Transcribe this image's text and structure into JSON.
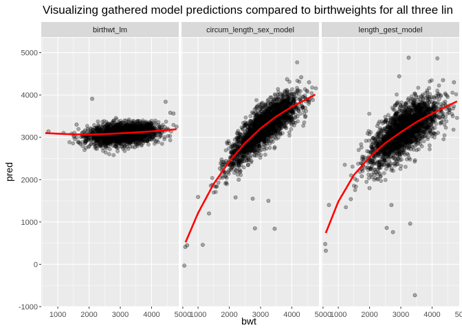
{
  "chart_data": {
    "type": "scatter",
    "title": "Visualizing gathered model predictions compared to birthweights for all three lin",
    "xlabel": "bwt",
    "ylabel": "pred",
    "xlim": [
      470,
      4870
    ],
    "ylim": [
      -1000,
      5350
    ],
    "x_ticks": [
      1000,
      2000,
      3000,
      4000,
      5000
    ],
    "y_ticks": [
      -1000,
      0,
      1000,
      2000,
      3000,
      4000,
      5000
    ],
    "grid": true,
    "legend": "none",
    "colors": {
      "panel_bg": "#EBEBEB",
      "strip_bg": "#D9D9D9",
      "grid": "#FFFFFF",
      "points": "#000000",
      "smooth": "#FF0000"
    },
    "facets": [
      {
        "name": "birthwt_lm",
        "smooth": {
          "x": [
            600,
            1000,
            1500,
            2000,
            2500,
            3000,
            3500,
            4000,
            4500,
            4800
          ],
          "y": [
            3100,
            3085,
            3070,
            3065,
            3075,
            3095,
            3115,
            3140,
            3170,
            3190
          ]
        },
        "cloud": {
          "x_mean": 3100,
          "x_sd": 550,
          "y_center": 3080,
          "y_slope": 0.06,
          "y_sd": 120,
          "n": 2000
        },
        "points": [
          {
            "x": 2100,
            "y": 3910
          },
          {
            "x": 4450,
            "y": 3840
          },
          {
            "x": 4600,
            "y": 3580
          },
          {
            "x": 4800,
            "y": 3250
          },
          {
            "x": 700,
            "y": 3140
          },
          {
            "x": 1600,
            "y": 3300
          },
          {
            "x": 2250,
            "y": 2730
          },
          {
            "x": 4700,
            "y": 3560
          }
        ]
      },
      {
        "name": "circum_length_sex_model",
        "smooth": {
          "x": [
            600,
            1000,
            1500,
            2000,
            2500,
            3000,
            3500,
            4000,
            4500,
            4750
          ],
          "y": [
            520,
            1210,
            1900,
            2430,
            2860,
            3210,
            3490,
            3720,
            3910,
            4010
          ]
        },
        "cloud": {
          "curve": "smooth",
          "x_mean": 3100,
          "x_sd": 560,
          "y_sd": 230,
          "n": 2000
        },
        "points": [
          {
            "x": 560,
            "y": -30
          },
          {
            "x": 590,
            "y": 410
          },
          {
            "x": 650,
            "y": 450
          },
          {
            "x": 1150,
            "y": 460
          },
          {
            "x": 1000,
            "y": 1590
          },
          {
            "x": 1350,
            "y": 1200
          },
          {
            "x": 1650,
            "y": 1930
          },
          {
            "x": 2200,
            "y": 1580
          },
          {
            "x": 2750,
            "y": 1550
          },
          {
            "x": 2820,
            "y": 850
          },
          {
            "x": 3450,
            "y": 840
          },
          {
            "x": 3250,
            "y": 1500
          },
          {
            "x": 3850,
            "y": 4370
          },
          {
            "x": 4300,
            "y": 4420
          },
          {
            "x": 4550,
            "y": 4300
          },
          {
            "x": 2600,
            "y": 2350
          },
          {
            "x": 2300,
            "y": 2000
          }
        ]
      },
      {
        "name": "length_gest_model",
        "smooth": {
          "x": [
            600,
            1000,
            1500,
            2000,
            2500,
            3000,
            3500,
            4000,
            4500,
            4800
          ],
          "y": [
            740,
            1480,
            2110,
            2530,
            2860,
            3120,
            3360,
            3560,
            3740,
            3850
          ]
        },
        "cloud": {
          "curve": "smooth",
          "x_mean": 3100,
          "x_sd": 560,
          "y_sd": 290,
          "n": 2000
        },
        "points": [
          {
            "x": 600,
            "y": 320
          },
          {
            "x": 580,
            "y": 480
          },
          {
            "x": 700,
            "y": 1400
          },
          {
            "x": 3250,
            "y": 4880
          },
          {
            "x": 2950,
            "y": 4440
          },
          {
            "x": 3450,
            "y": -730
          },
          {
            "x": 2550,
            "y": 860
          },
          {
            "x": 2750,
            "y": 760
          },
          {
            "x": 3300,
            "y": 960
          },
          {
            "x": 2700,
            "y": 1400
          },
          {
            "x": 1400,
            "y": 1540
          },
          {
            "x": 1750,
            "y": 2080
          },
          {
            "x": 2000,
            "y": 1800
          },
          {
            "x": 4700,
            "y": 4300
          },
          {
            "x": 4350,
            "y": 4350
          }
        ]
      }
    ]
  }
}
